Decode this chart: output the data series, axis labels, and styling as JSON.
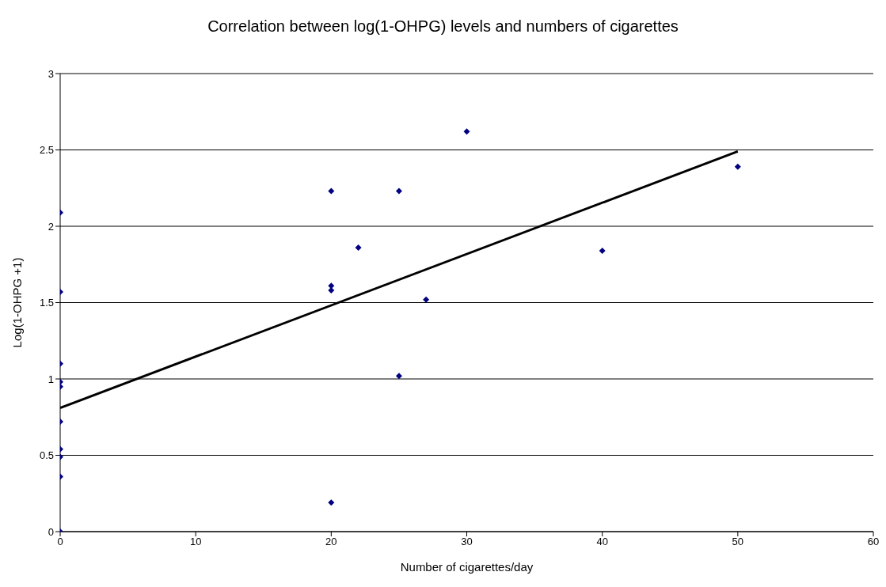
{
  "chart_data": {
    "type": "scatter",
    "title": "Correlation between log(1-OHPG) levels and numbers of cigarettes",
    "xlabel": "Number of cigarettes/day",
    "ylabel": "Log(1-OHPG +1)",
    "xlim": [
      0,
      60
    ],
    "xticks": [
      0,
      10,
      20,
      30,
      40,
      50,
      60
    ],
    "ylim": [
      0,
      3
    ],
    "yticks": [
      0,
      0.5,
      1,
      1.5,
      2,
      2.5,
      3
    ],
    "grid": "y",
    "marker": "diamond",
    "series": [
      {
        "color": "#000080",
        "x": [
          0,
          0,
          0,
          0,
          0,
          0,
          0,
          0,
          0,
          0,
          20,
          20,
          20,
          20,
          22,
          25,
          25,
          27,
          30,
          40,
          50
        ],
        "values": [
          2.09,
          1.57,
          1.1,
          0.98,
          0.95,
          0.72,
          0.54,
          0.49,
          0.36,
          0,
          2.23,
          1.61,
          1.58,
          0.19,
          1.86,
          2.23,
          1.02,
          1.52,
          2.62,
          1.84,
          2.39
        ]
      },
      {
        "type": "line",
        "color": "#000000",
        "x": [
          0,
          50
        ],
        "values": [
          0.81,
          2.49
        ],
        "line_style": "solid",
        "marker": "none"
      }
    ]
  }
}
